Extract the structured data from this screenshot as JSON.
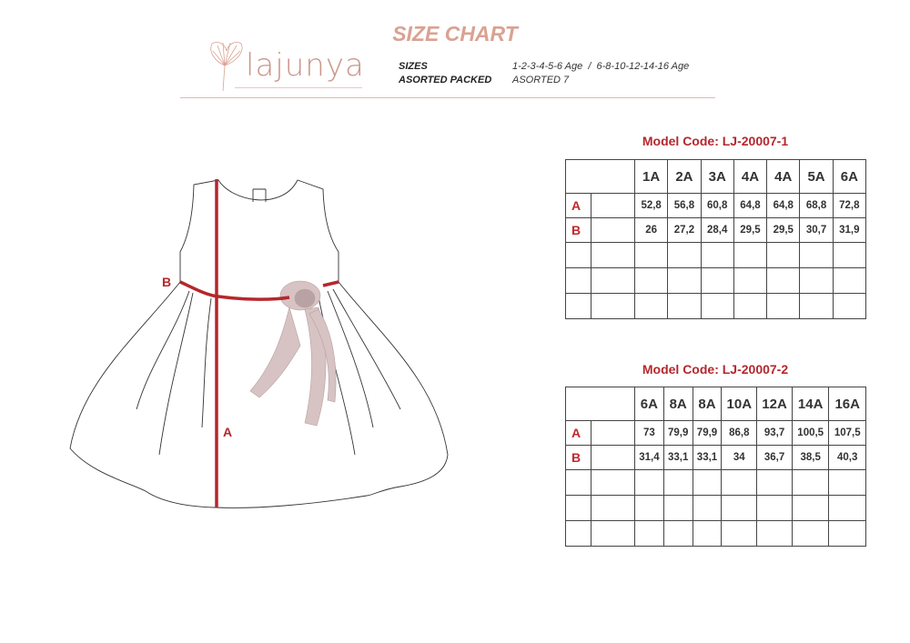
{
  "header": {
    "title": "SIZE CHART",
    "logo": "lajunya",
    "sizes_label": "SIZES",
    "sizes_value": "1-2-3-4-5-6 Age  /  6-8-10-12-14-16 Age",
    "packed_label": "ASORTED PACKED",
    "packed_value": "ASORTED 7"
  },
  "diagram": {
    "label_a": "A",
    "label_b": "B",
    "measure_color": "#b5272d"
  },
  "tables": [
    {
      "model_code": "Model Code: LJ-20007-1",
      "sizes": [
        "1A",
        "2A",
        "3A",
        "4A",
        "4A",
        "5A",
        "6A"
      ],
      "rows": [
        {
          "label": "A",
          "values": [
            "52,8",
            "56,8",
            "60,8",
            "64,8",
            "64,8",
            "68,8",
            "72,8"
          ]
        },
        {
          "label": "B",
          "values": [
            "26",
            "27,2",
            "28,4",
            "29,5",
            "29,5",
            "30,7",
            "31,9"
          ]
        }
      ]
    },
    {
      "model_code": "Model Code: LJ-20007-2",
      "sizes": [
        "6A",
        "8A",
        "8A",
        "10A",
        "12A",
        "14A",
        "16A"
      ],
      "rows": [
        {
          "label": "A",
          "values": [
            "73",
            "79,9",
            "79,9",
            "86,8",
            "93,7",
            "100,5",
            "107,5"
          ]
        },
        {
          "label": "B",
          "values": [
            "31,4",
            "33,1",
            "33,1",
            "34",
            "36,7",
            "38,5",
            "40,3"
          ]
        }
      ]
    }
  ]
}
